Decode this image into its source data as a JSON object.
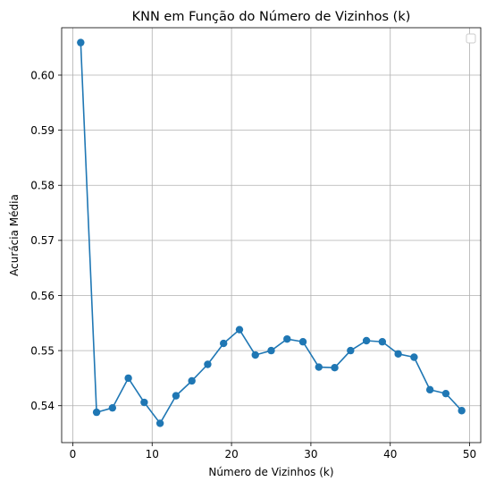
{
  "chart_data": {
    "type": "line",
    "title": "KNN em Função do Número de Vizinhos (k)",
    "xlabel": "Número de Vizinhos (k)",
    "ylabel": "Acurácia Média",
    "xlim": [
      -1.4,
      51.4
    ],
    "ylim": [
      0.5333,
      0.6086
    ],
    "xticks": [
      0,
      10,
      20,
      30,
      40,
      50
    ],
    "yticks": [
      0.54,
      0.55,
      0.56,
      0.57,
      0.58,
      0.59,
      0.6
    ],
    "ytick_labels": [
      "0.54",
      "0.55",
      "0.56",
      "0.57",
      "0.58",
      "0.59",
      "0.60"
    ],
    "grid": true,
    "legend": "top-right, empty",
    "series": [
      {
        "color": "#1f77b4",
        "marker": "circle",
        "x": [
          1,
          3,
          5,
          7,
          9,
          11,
          13,
          15,
          17,
          19,
          21,
          23,
          25,
          27,
          29,
          31,
          33,
          35,
          37,
          39,
          41,
          43,
          45,
          47,
          49
        ],
        "y": [
          0.6059,
          0.5388,
          0.5396,
          0.545,
          0.5406,
          0.5368,
          0.5418,
          0.5445,
          0.5475,
          0.5513,
          0.5538,
          0.5492,
          0.55,
          0.5521,
          0.5516,
          0.547,
          0.5469,
          0.55,
          0.5518,
          0.5516,
          0.5494,
          0.5488,
          0.5429,
          0.5422,
          0.5391
        ]
      }
    ]
  }
}
